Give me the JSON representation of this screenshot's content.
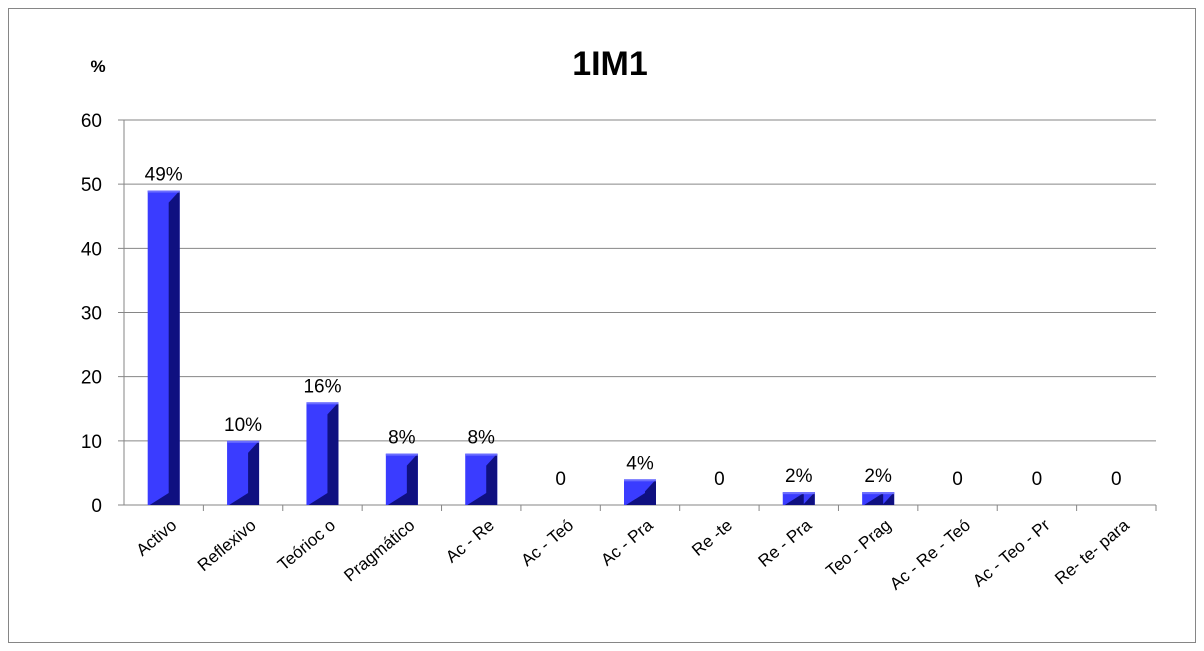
{
  "chart_data": {
    "type": "bar",
    "title": "1IM1",
    "ylabel": "%",
    "xlabel": "",
    "ylim": [
      0,
      60
    ],
    "yticks": [
      0,
      10,
      20,
      30,
      40,
      50,
      60
    ],
    "grid": true,
    "categories": [
      "Activo",
      "Reflexivo",
      "Teórioc o",
      "Pragmático",
      "Ac - Re",
      "Ac - Teó",
      "Ac - Pra",
      "Re -te",
      "Re - Pra",
      "Teo - Prag",
      "Ac - Re - Teó",
      "Ac - Teo - Pr",
      "Re- te- para"
    ],
    "values": [
      49,
      10,
      16,
      8,
      8,
      0,
      4,
      0,
      2,
      2,
      0,
      0,
      0
    ],
    "data_labels": [
      "49%",
      "10%",
      "16%",
      "8%",
      "8%",
      "0",
      "4%",
      "0",
      "2%",
      "2%",
      "0",
      "0",
      "0"
    ],
    "colors": {
      "bar_front": "#3a3cff",
      "bar_side": "#0f1080",
      "bar_top": "#6b6dff",
      "grid": "#868686"
    }
  }
}
